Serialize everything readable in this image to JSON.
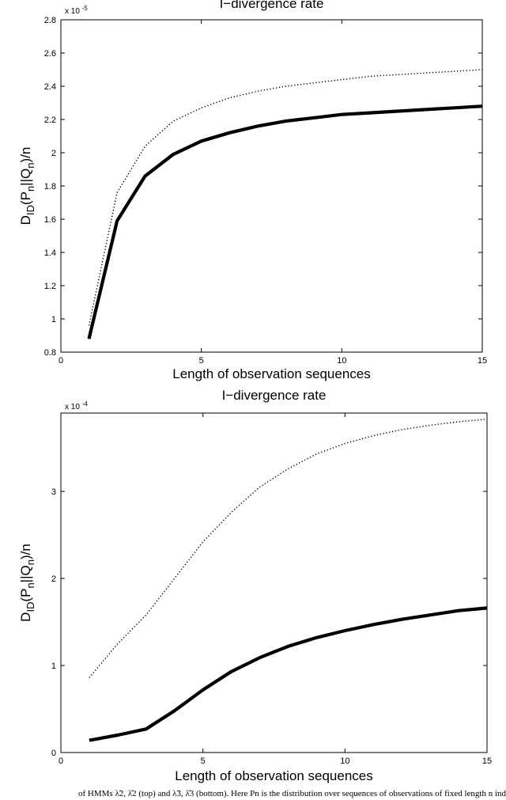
{
  "chart_data": [
    {
      "type": "line",
      "title": "I−divergence rate",
      "xlabel": "Length of observation sequences",
      "ylabel": "D_ID(P_n||Q_n)/n",
      "exponent_label": "x 10",
      "exponent_power": "-5",
      "xlim": [
        0,
        15
      ],
      "ylim": [
        0.8,
        2.8
      ],
      "xticks": [
        "0",
        "5",
        "10",
        "15"
      ],
      "yticks": [
        "0.8",
        "1",
        "1.2",
        "1.4",
        "1.6",
        "1.8",
        "2",
        "2.2",
        "2.4",
        "2.6",
        "2.8"
      ],
      "grid": false,
      "series": [
        {
          "style": "dotted",
          "x": [
            1,
            2,
            3,
            4,
            5,
            6,
            7,
            8,
            9,
            10,
            11,
            12,
            13,
            14,
            15
          ],
          "values": [
            0.96,
            1.76,
            2.04,
            2.19,
            2.27,
            2.33,
            2.37,
            2.4,
            2.42,
            2.44,
            2.46,
            2.47,
            2.48,
            2.49,
            2.5
          ]
        },
        {
          "style": "solid-thick",
          "x": [
            1,
            2,
            3,
            4,
            5,
            6,
            7,
            8,
            9,
            10,
            11,
            12,
            13,
            14,
            15
          ],
          "values": [
            0.88,
            1.59,
            1.86,
            1.99,
            2.07,
            2.12,
            2.16,
            2.19,
            2.21,
            2.23,
            2.24,
            2.25,
            2.26,
            2.27,
            2.28
          ]
        }
      ]
    },
    {
      "type": "line",
      "title": "I−divergence rate",
      "xlabel": "Length of observation sequences",
      "ylabel": "D_ID(P_n||Q_n)/n",
      "exponent_label": "x 10",
      "exponent_power": "-4",
      "xlim": [
        0,
        15
      ],
      "ylim": [
        0,
        3.9
      ],
      "xticks": [
        "0",
        "5",
        "10",
        "15"
      ],
      "yticks": [
        "0",
        "1",
        "2",
        "3"
      ],
      "grid": false,
      "series": [
        {
          "style": "dotted",
          "x": [
            1,
            2,
            3,
            4,
            5,
            6,
            7,
            8,
            9,
            10,
            11,
            12,
            13,
            14,
            15
          ],
          "values": [
            0.86,
            1.25,
            1.58,
            2.0,
            2.42,
            2.76,
            3.05,
            3.26,
            3.43,
            3.55,
            3.64,
            3.71,
            3.76,
            3.8,
            3.83
          ]
        },
        {
          "style": "solid-thick",
          "x": [
            1,
            2,
            3,
            4,
            5,
            6,
            7,
            8,
            9,
            10,
            11,
            12,
            13,
            14,
            15
          ],
          "values": [
            0.14,
            0.2,
            0.27,
            0.48,
            0.72,
            0.93,
            1.09,
            1.22,
            1.32,
            1.4,
            1.47,
            1.53,
            1.58,
            1.63,
            1.66
          ]
        }
      ]
    }
  ],
  "caption": "of HMMs λ̃2, λ̂2 (top) and λ̃3, λ̂3 (bottom). Here Pn is the distribution over sequences of observations of fixed length n ind"
}
